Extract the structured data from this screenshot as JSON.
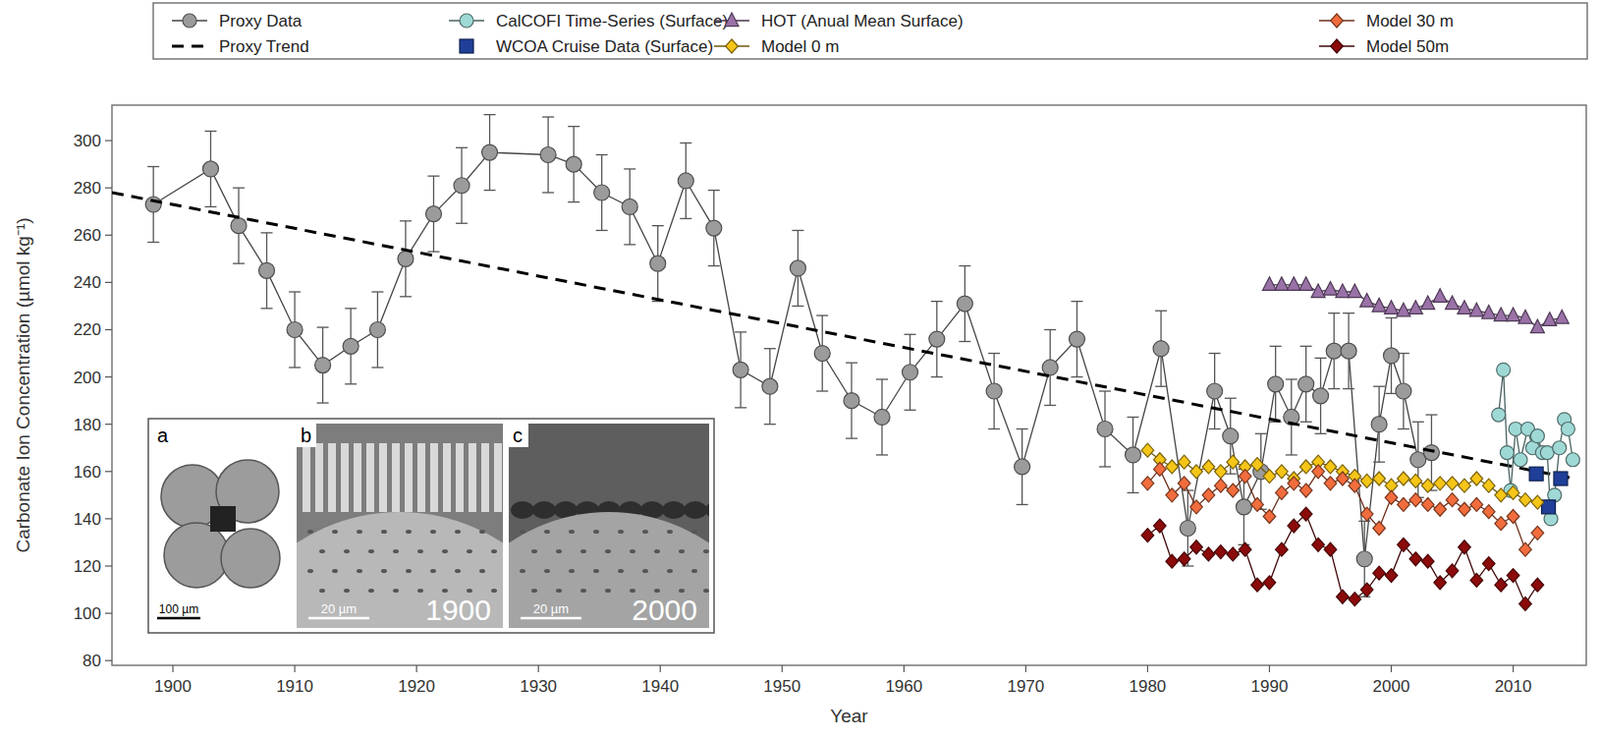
{
  "chart_data": {
    "type": "line",
    "x_label": "Year",
    "y_label": "Carbonate Ion Concentration (µmol kg⁻¹)",
    "xlim": [
      1895,
      2016
    ],
    "ylim": [
      78,
      315
    ],
    "xticks": [
      1900,
      1910,
      1920,
      1930,
      1940,
      1950,
      1960,
      1970,
      1980,
      1990,
      2000,
      2010
    ],
    "yticks": [
      80,
      100,
      120,
      140,
      160,
      180,
      200,
      220,
      240,
      260,
      280,
      300
    ],
    "legend": "top",
    "series": [
      {
        "name": "Proxy Data",
        "color": "#9b9b9b",
        "marker": "circle",
        "line_style": "solid",
        "x": [
          1898.4,
          1903.1,
          1905.4,
          1907.7,
          1910.0,
          1912.3,
          1914.6,
          1916.8,
          1919.1,
          1921.4,
          1923.7,
          1926.0,
          1930.8,
          1932.9,
          1935.2,
          1937.5,
          1939.8,
          1942.1,
          1944.4,
          1946.6,
          1949.0,
          1951.3,
          1953.3,
          1955.7,
          1958.2,
          1960.5,
          1962.7,
          1965.0,
          1967.4,
          1969.7,
          1972.0,
          1974.2,
          1976.5,
          1978.8,
          1981.1,
          1983.3,
          1985.5,
          1986.8,
          1987.9,
          1989.3,
          1990.5,
          1991.8,
          1993.0,
          1994.2,
          1995.3,
          1996.5,
          1997.8,
          1999.0,
          2000.0,
          2001.0,
          2002.2,
          2003.3
        ],
        "values": [
          273,
          288,
          264,
          245,
          220,
          205,
          213,
          220,
          250,
          269,
          281,
          295,
          294,
          290,
          278,
          272,
          248,
          283,
          263,
          203,
          196,
          246,
          210,
          190,
          183,
          202,
          216,
          231,
          194,
          162,
          204,
          216,
          178,
          167,
          212,
          136,
          194,
          175,
          145,
          160,
          197,
          183,
          197,
          192,
          211,
          211,
          123,
          180,
          209,
          194,
          165,
          168
        ],
        "errors": [
          16,
          16,
          16,
          16,
          16,
          16,
          16,
          16,
          16,
          16,
          16,
          16,
          16,
          16,
          16,
          16,
          16,
          16,
          16,
          16,
          16,
          16,
          16,
          16,
          16,
          16,
          16,
          16,
          16,
          16,
          16,
          16,
          16,
          16,
          16,
          16,
          16,
          16,
          16,
          16,
          16,
          16,
          16,
          16,
          16,
          16,
          16,
          16,
          16,
          16,
          16,
          16
        ]
      },
      {
        "name": "Proxy Trend",
        "color": "#000000",
        "marker": "none",
        "line_style": "dashed",
        "x": [
          1895,
          2015
        ],
        "values": [
          278,
          157
        ]
      },
      {
        "name": "CalCOFI Time-Series (Surface)",
        "color": "#9fd9d6",
        "marker": "circle",
        "line_style": "solid",
        "x": [
          2008.8,
          2009.2,
          2009.5,
          2009.8,
          2010.2,
          2010.6,
          2011.2,
          2011.6,
          2012.0,
          2012.4,
          2012.8,
          2013.1,
          2013.4,
          2013.8,
          2014.2,
          2014.5,
          2014.9
        ],
        "values": [
          184,
          203,
          168,
          152,
          178,
          165,
          178,
          170,
          175,
          168,
          168,
          140,
          150,
          170,
          182,
          178,
          165
        ]
      },
      {
        "name": "WCOA Cruise Data (Surface)",
        "color": "#1f3f99",
        "marker": "square",
        "line_style": "none",
        "x": [
          2011.9,
          2012.9,
          2013.9
        ],
        "values": [
          159,
          145,
          157
        ]
      },
      {
        "name": "HOT (Anual Mean Surface)",
        "color": "#9a72a8",
        "marker": "triangle",
        "line_style": "solid",
        "x": [
          1990,
          1991,
          1992,
          1993,
          1994,
          1995,
          1996,
          1997,
          1998,
          1999,
          2000,
          2001,
          2002,
          2003,
          2004,
          2005,
          2006,
          2007,
          2008,
          2009,
          2010,
          2011,
          2012,
          2013,
          2014
        ],
        "values": [
          239,
          239,
          239,
          239,
          236,
          237,
          236,
          236,
          232,
          230,
          229,
          228,
          229,
          231,
          234,
          231,
          229,
          228,
          227,
          226,
          226,
          225,
          221,
          224,
          225
        ]
      },
      {
        "name": "Model 0 m",
        "color": "#f5c518",
        "marker": "diamond",
        "line_style": "solid",
        "x": [
          1980,
          1981,
          1982,
          1983,
          1984,
          1985,
          1986,
          1987,
          1988,
          1989,
          1990,
          1991,
          1992,
          1993,
          1994,
          1995,
          1996,
          1997,
          1998,
          1999,
          2000,
          2001,
          2002,
          2003,
          2004,
          2005,
          2006,
          2007,
          2008,
          2009,
          2010,
          2011,
          2012
        ],
        "values": [
          169,
          165,
          162,
          164,
          160,
          162,
          160,
          164,
          162,
          163,
          158,
          160,
          157,
          162,
          164,
          162,
          160,
          158,
          156,
          157,
          154,
          157,
          156,
          154,
          155,
          155,
          154,
          157,
          154,
          150,
          151,
          148,
          147
        ]
      },
      {
        "name": "Model 30 m",
        "color": "#f26d3d",
        "marker": "diamond",
        "line_style": "solid",
        "x": [
          1980,
          1981,
          1982,
          1983,
          1984,
          1985,
          1986,
          1987,
          1988,
          1989,
          1990,
          1991,
          1992,
          1993,
          1994,
          1995,
          1996,
          1997,
          1998,
          1999,
          2000,
          2001,
          2002,
          2003,
          2004,
          2005,
          2006,
          2007,
          2008,
          2009,
          2010,
          2011,
          2012
        ],
        "values": [
          155,
          161,
          150,
          155,
          145,
          150,
          154,
          152,
          158,
          146,
          141,
          151,
          155,
          152,
          160,
          155,
          157,
          154,
          142,
          136,
          149,
          146,
          148,
          146,
          144,
          148,
          144,
          146,
          143,
          138,
          141,
          127,
          134
        ]
      },
      {
        "name": "Model 50m",
        "color": "#8b0a0a",
        "marker": "diamond",
        "line_style": "solid",
        "x": [
          1980,
          1981,
          1982,
          1983,
          1984,
          1985,
          1986,
          1987,
          1988,
          1989,
          1990,
          1991,
          1992,
          1993,
          1994,
          1995,
          1996,
          1997,
          1998,
          1999,
          2000,
          2001,
          2002,
          2003,
          2004,
          2005,
          2006,
          2007,
          2008,
          2009,
          2010,
          2011,
          2012
        ],
        "values": [
          133,
          137,
          122,
          123,
          128,
          125,
          126,
          125,
          127,
          112,
          113,
          127,
          137,
          142,
          129,
          127,
          107,
          106,
          110,
          117,
          116,
          129,
          123,
          122,
          113,
          118,
          128,
          114,
          121,
          112,
          116,
          104,
          112
        ]
      }
    ],
    "annotations": [
      {
        "panel": "a",
        "scale_bar": "100 µm"
      },
      {
        "panel": "b",
        "scale_bar": "20 µm",
        "label": "1900"
      },
      {
        "panel": "c",
        "scale_bar": "20 µm",
        "label": "2000"
      }
    ]
  }
}
